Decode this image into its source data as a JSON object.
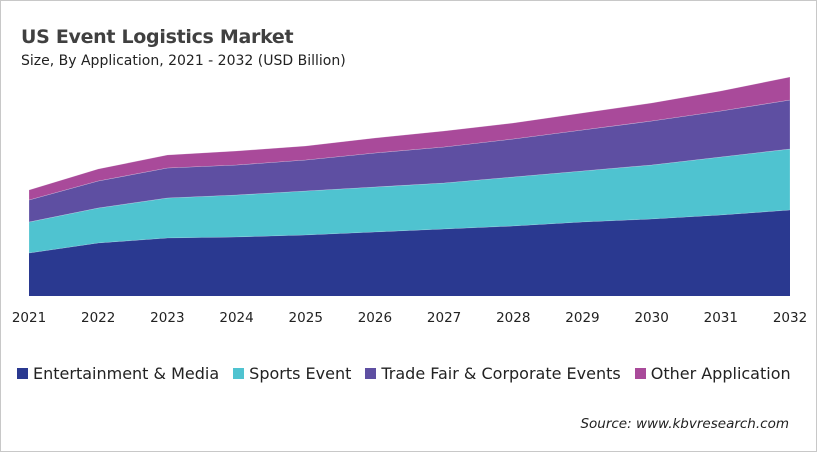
{
  "chart_data": {
    "type": "area",
    "stacked": true,
    "title": "US Event Logistics Market",
    "subtitle": "Size, By Application, 2021 - 2032 (USD Billion)",
    "xlabel": "",
    "ylabel": "",
    "categories": [
      "2021",
      "2022",
      "2023",
      "2024",
      "2025",
      "2026",
      "2027",
      "2028",
      "2029",
      "2030",
      "2031",
      "2032"
    ],
    "ylim": [
      0,
      22
    ],
    "grid": false,
    "legend_position": "bottom",
    "series": [
      {
        "name": "Entertainment & Media",
        "color": "#2a3990",
        "values": [
          4.3,
          5.3,
          5.8,
          5.9,
          6.1,
          6.4,
          6.7,
          7.0,
          7.4,
          7.7,
          8.1,
          8.6
        ]
      },
      {
        "name": "Sports Event",
        "color": "#4fc3d0",
        "values": [
          3.1,
          3.5,
          4.0,
          4.2,
          4.4,
          4.5,
          4.6,
          4.9,
          5.1,
          5.4,
          5.8,
          6.1
        ]
      },
      {
        "name": "Trade Fair & Corporate Events",
        "color": "#5e4fa2",
        "values": [
          2.2,
          2.7,
          3.0,
          3.0,
          3.1,
          3.4,
          3.6,
          3.8,
          4.1,
          4.4,
          4.6,
          4.9
        ]
      },
      {
        "name": "Other Application",
        "color": "#a94a9a",
        "values": [
          1.0,
          1.2,
          1.3,
          1.4,
          1.4,
          1.5,
          1.6,
          1.6,
          1.7,
          1.8,
          2.0,
          2.3
        ]
      }
    ]
  },
  "source": "Source: www.kbvresearch.com"
}
